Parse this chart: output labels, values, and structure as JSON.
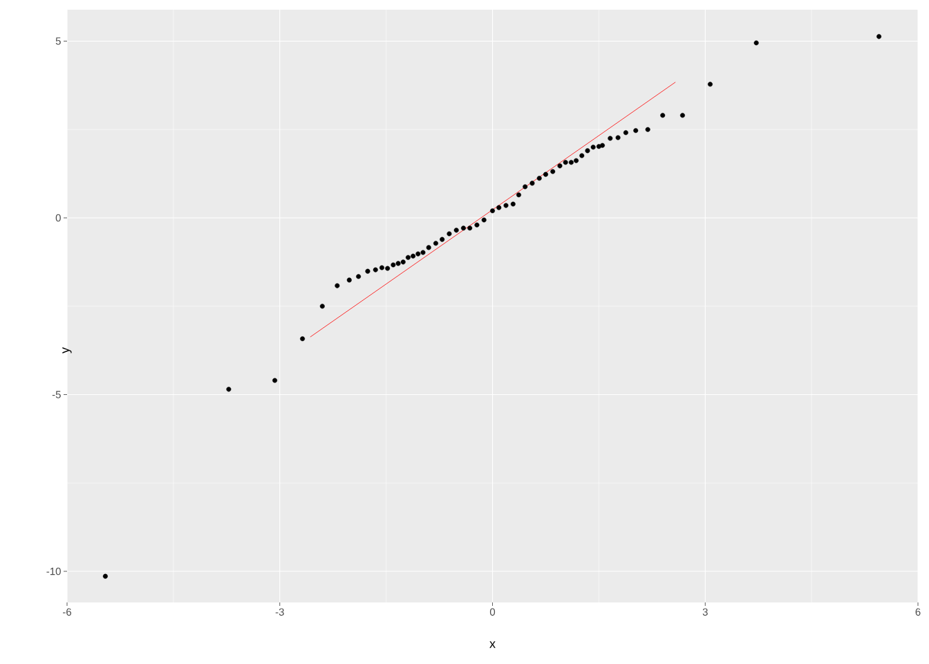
{
  "chart_data": {
    "type": "scatter",
    "xlabel": "x",
    "ylabel": "y",
    "xlim": [
      -6,
      6
    ],
    "ylim": [
      -10.88,
      5.89
    ],
    "xticks": [
      -6,
      -3,
      0,
      3,
      6
    ],
    "yticks": [
      -10,
      -5,
      0,
      5
    ],
    "grid": true,
    "series": [
      {
        "marker": "circle",
        "color": "#000000",
        "x": [
          -5.46,
          -3.72,
          -3.07,
          -2.68,
          -2.4,
          -2.19,
          -2.02,
          -1.89,
          -1.76,
          -1.65,
          -1.56,
          -1.48,
          -1.4,
          -1.33,
          -1.26,
          -1.19,
          -1.12,
          -1.05,
          -0.98,
          -0.9,
          -0.8,
          -0.71,
          -0.61,
          -0.51,
          -0.41,
          -0.32,
          -0.22,
          -0.12,
          0,
          0.09,
          0.19,
          0.29,
          0.37,
          0.46,
          0.56,
          0.66,
          0.75,
          0.85,
          0.95,
          1.03,
          1.11,
          1.18,
          1.26,
          1.34,
          1.42,
          1.5,
          1.55,
          1.66,
          1.77,
          1.88,
          2.02,
          2.19,
          2.4,
          2.68,
          3.07,
          3.72,
          5.45
        ],
        "values": [
          -10.14,
          -4.85,
          -4.6,
          -3.42,
          -2.5,
          -1.92,
          -1.76,
          -1.66,
          -1.51,
          -1.47,
          -1.41,
          -1.43,
          -1.33,
          -1.29,
          -1.25,
          -1.12,
          -1.08,
          -1.02,
          -0.98,
          -0.84,
          -0.72,
          -0.61,
          -0.45,
          -0.35,
          -0.29,
          -0.29,
          -0.2,
          -0.06,
          0.2,
          0.29,
          0.35,
          0.39,
          0.65,
          0.88,
          0.98,
          1.12,
          1.23,
          1.31,
          1.47,
          1.57,
          1.57,
          1.62,
          1.76,
          1.9,
          2.0,
          2.02,
          2.05,
          2.25,
          2.27,
          2.41,
          2.47,
          2.5,
          2.9,
          2.9,
          3.78,
          4.95,
          5.13
        ]
      },
      {
        "type": "line",
        "marker": "none",
        "color": "#ff0000",
        "x": [
          -2.57,
          2.58
        ],
        "values": [
          -3.37,
          3.84
        ]
      }
    ]
  }
}
